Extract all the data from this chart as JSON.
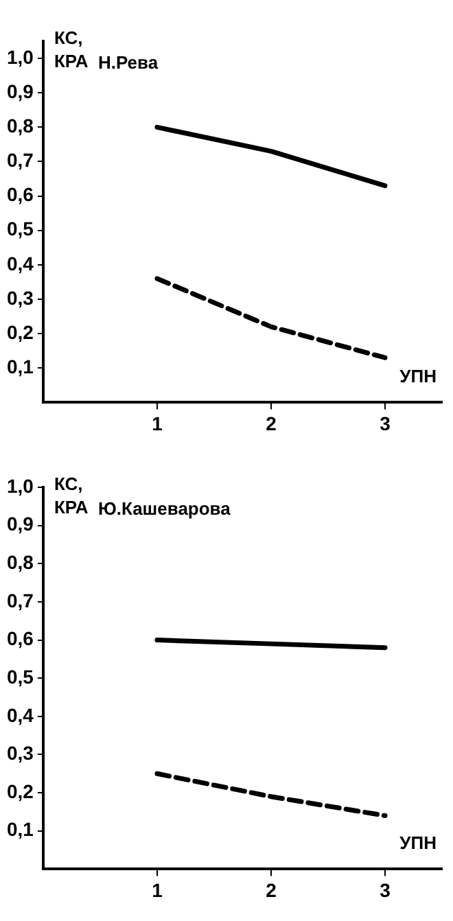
{
  "chart_data": [
    {
      "type": "line",
      "title": "Н.Рева",
      "xlabel": "УПН",
      "ylabel": "КС, КРА",
      "x": [
        1,
        2,
        3
      ],
      "xlim": [
        0,
        3.5
      ],
      "xticks": [
        1,
        2,
        3
      ],
      "ylim": [
        0,
        1.05
      ],
      "yticks": [
        {
          "value": 0.1,
          "label": "0,1"
        },
        {
          "value": 0.2,
          "label": "0,2"
        },
        {
          "value": 0.3,
          "label": "0,3"
        },
        {
          "value": 0.4,
          "label": "0,4"
        },
        {
          "value": 0.5,
          "label": "0,5"
        },
        {
          "value": 0.6,
          "label": "0,6"
        },
        {
          "value": 0.7,
          "label": "0,7"
        },
        {
          "value": 0.8,
          "label": "0,8"
        },
        {
          "value": 0.9,
          "label": "0,9"
        },
        {
          "value": 1.0,
          "label": "1,0"
        }
      ],
      "grid": false,
      "legend": false,
      "marker": "none",
      "series": [
        {
          "color": "#000000",
          "line_style": "solid",
          "values": [
            0.8,
            0.73,
            0.63
          ]
        },
        {
          "color": "#000000",
          "line_style": "dashed",
          "values": [
            0.36,
            0.22,
            0.13
          ]
        }
      ]
    },
    {
      "type": "line",
      "title": "Ю.Кашеварова",
      "xlabel": "УПН",
      "ylabel": "КС, КРА",
      "x": [
        1,
        2,
        3
      ],
      "xlim": [
        0,
        3.5
      ],
      "xticks": [
        1,
        2,
        3
      ],
      "ylim": [
        0,
        1.0
      ],
      "yticks": [
        {
          "value": 0.1,
          "label": "0,1"
        },
        {
          "value": 0.2,
          "label": "0,2"
        },
        {
          "value": 0.3,
          "label": "0,3"
        },
        {
          "value": 0.4,
          "label": "0,4"
        },
        {
          "value": 0.5,
          "label": "0,5"
        },
        {
          "value": 0.6,
          "label": "0,6"
        },
        {
          "value": 0.7,
          "label": "0,7"
        },
        {
          "value": 0.8,
          "label": "0,8"
        },
        {
          "value": 0.9,
          "label": "0,9"
        },
        {
          "value": 1.0,
          "label": "1,0"
        }
      ],
      "grid": false,
      "legend": false,
      "marker": "none",
      "series": [
        {
          "color": "#000000",
          "line_style": "solid",
          "values": [
            0.6,
            0.59,
            0.58
          ]
        },
        {
          "color": "#000000",
          "line_style": "dashed",
          "values": [
            0.25,
            0.19,
            0.14
          ]
        }
      ]
    }
  ]
}
